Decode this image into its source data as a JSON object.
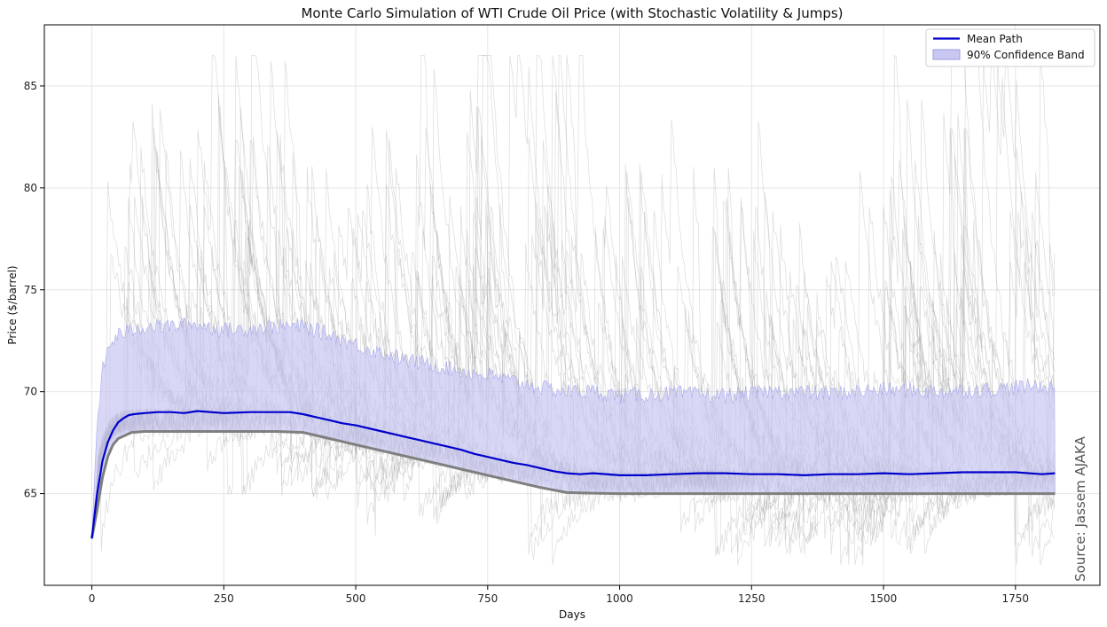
{
  "chart_data": {
    "type": "line",
    "title": "Monte Carlo Simulation of WTI Crude Oil Price (with Stochastic Volatility & Jumps)",
    "xlabel": "Days",
    "ylabel": "Price ($/barrel)",
    "xlim": [
      -90,
      1910
    ],
    "ylim": [
      60.5,
      88
    ],
    "xticks": [
      0,
      250,
      500,
      750,
      1000,
      1250,
      1500,
      1750
    ],
    "yticks": [
      65,
      70,
      75,
      80,
      85
    ],
    "grid": true,
    "legend_position": "top-right",
    "source_annotation": "Source: Jassem AJAKA",
    "colors": {
      "mean_path": "#0000cc",
      "confidence_band": "#c8c8f2",
      "simulated_paths": "#888888",
      "base_path": "#7f7f7f"
    },
    "series": [
      {
        "name": "Mean Path",
        "x": [
          0,
          10,
          20,
          30,
          40,
          50,
          60,
          70,
          80,
          100,
          125,
          150,
          175,
          200,
          250,
          300,
          350,
          375,
          400,
          425,
          450,
          475,
          500,
          525,
          550,
          575,
          600,
          625,
          650,
          675,
          700,
          725,
          750,
          775,
          800,
          825,
          850,
          875,
          900,
          925,
          950,
          1000,
          1050,
          1100,
          1150,
          1200,
          1250,
          1300,
          1350,
          1400,
          1450,
          1500,
          1550,
          1600,
          1650,
          1700,
          1750,
          1800,
          1825
        ],
        "y": [
          62.8,
          65.0,
          66.6,
          67.5,
          68.1,
          68.5,
          68.7,
          68.85,
          68.9,
          68.95,
          69.0,
          69.0,
          68.95,
          69.05,
          68.95,
          69.0,
          69.0,
          69.0,
          68.9,
          68.75,
          68.6,
          68.45,
          68.35,
          68.2,
          68.05,
          67.9,
          67.75,
          67.6,
          67.45,
          67.3,
          67.15,
          66.95,
          66.8,
          66.65,
          66.5,
          66.4,
          66.25,
          66.1,
          66.0,
          65.95,
          66.0,
          65.9,
          65.9,
          65.95,
          66.0,
          66.0,
          65.95,
          65.95,
          65.9,
          65.95,
          65.95,
          66.0,
          65.95,
          66.0,
          66.05,
          66.05,
          66.05,
          65.95,
          66.0
        ]
      },
      {
        "name": "90% Confidence Band",
        "x": [
          0,
          10,
          20,
          30,
          40,
          50,
          75,
          100,
          150,
          200,
          250,
          300,
          350,
          400,
          450,
          500,
          550,
          600,
          650,
          700,
          750,
          800,
          850,
          900,
          950,
          1000,
          1100,
          1200,
          1300,
          1400,
          1500,
          1600,
          1700,
          1800,
          1825
        ],
        "upper": [
          62.8,
          68.5,
          71.0,
          72.0,
          72.5,
          72.8,
          73.0,
          73.2,
          73.2,
          73.3,
          73.0,
          73.1,
          73.2,
          73.2,
          72.8,
          72.3,
          71.9,
          71.5,
          71.3,
          71.0,
          70.8,
          70.5,
          70.2,
          70.0,
          70.0,
          69.8,
          69.9,
          69.8,
          70.0,
          69.9,
          70.1,
          70.0,
          70.1,
          70.3,
          70.2
        ],
        "lower": [
          62.8,
          64.2,
          65.8,
          66.8,
          67.4,
          67.7,
          68.0,
          68.05,
          68.05,
          68.05,
          68.05,
          68.05,
          68.05,
          68.0,
          67.7,
          67.4,
          67.1,
          66.8,
          66.5,
          66.2,
          65.9,
          65.6,
          65.3,
          65.05,
          65.02,
          65.0,
          65.0,
          65.0,
          65.0,
          65.0,
          65.0,
          65.0,
          65.0,
          65.0,
          65.0
        ]
      }
    ]
  }
}
